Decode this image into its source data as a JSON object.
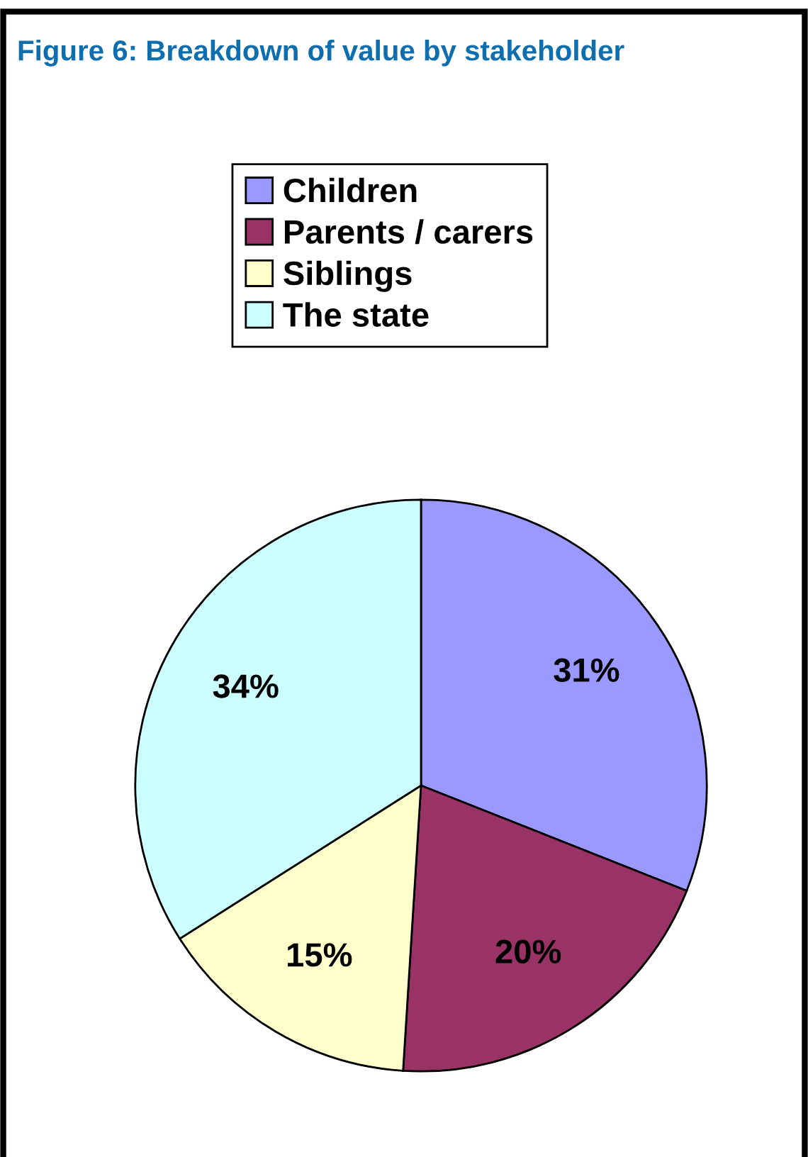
{
  "chart_data": {
    "type": "pie",
    "title": "Figure 6: Breakdown of value by stakeholder",
    "categories": [
      "Children",
      "Parents / carers",
      "Siblings",
      "The state"
    ],
    "values": [
      31,
      20,
      15,
      34
    ],
    "colors": [
      "#9999ff",
      "#993366",
      "#ffffcc",
      "#ccffff"
    ],
    "value_labels": [
      "31%",
      "20%",
      "15%",
      "34%"
    ],
    "legend": "top"
  }
}
